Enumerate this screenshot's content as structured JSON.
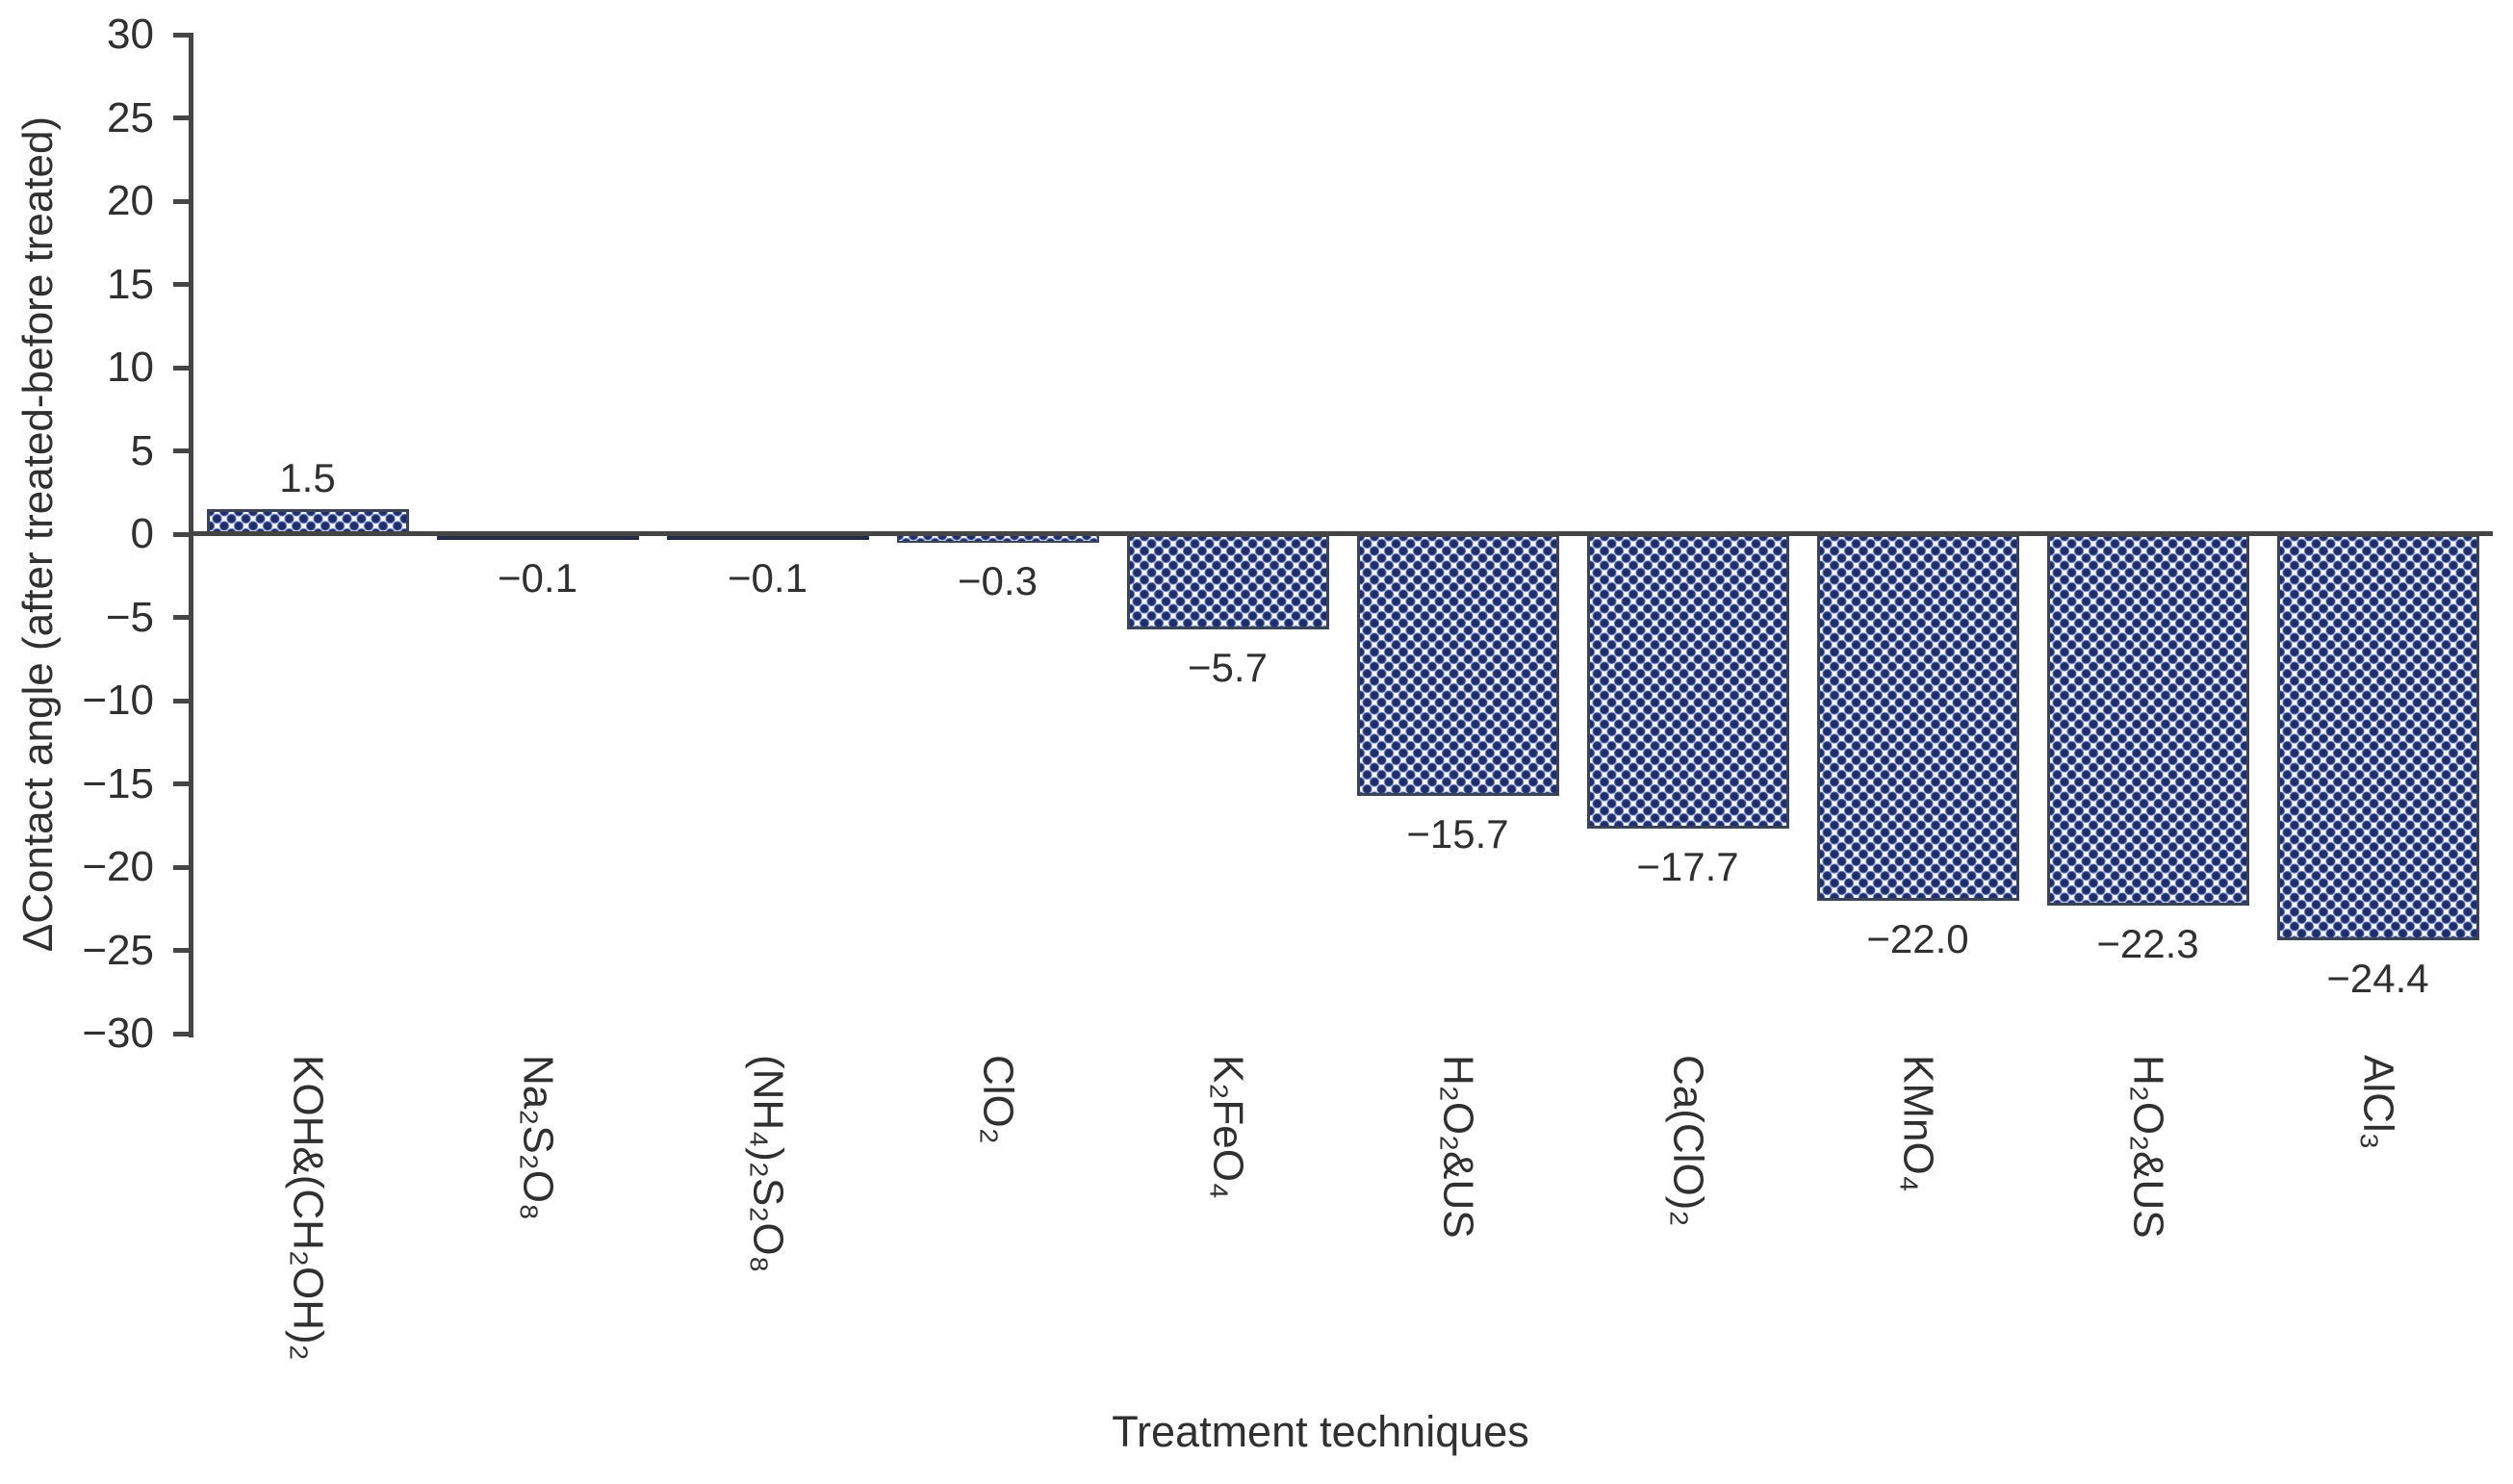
{
  "chart_data": {
    "type": "bar",
    "title": "",
    "xlabel": "Treatment techniques",
    "ylabel": "ΔContact angle (after treated-before treated)",
    "categories": [
      "KOH&(CH₂OH)₂",
      "Na₂S₂O₈",
      "(NH₄)₂S₂O₈",
      "ClO₂",
      "K₂FeO₄",
      "H₂O₂&US",
      "Ca(ClO)₂",
      "KMnO₄",
      "H₂O₂&US",
      "AlCl₃"
    ],
    "values": [
      1.5,
      -0.1,
      -0.1,
      -0.3,
      -5.7,
      -15.7,
      -17.7,
      -22.0,
      -22.3,
      -24.4
    ],
    "value_labels": [
      "1.5",
      "−0.1",
      "−0.1",
      "−0.3",
      "−5.7",
      "−15.7",
      "−17.7",
      "−22.0",
      "−22.3",
      "−24.4"
    ],
    "ylim": [
      -30,
      30
    ],
    "ytick_step": 5,
    "yticks": [
      30,
      25,
      20,
      15,
      10,
      5,
      0,
      -5,
      -10,
      -15,
      -20,
      -25,
      -30
    ],
    "ytick_labels": [
      "30",
      "25",
      "20",
      "15",
      "10",
      "5",
      "0",
      "−5",
      "−10",
      "−15",
      "−20",
      "−25",
      "−30"
    ],
    "grid": false,
    "legend": false,
    "bar_pattern": "navy dotted diamond weave on white",
    "colors": {
      "bar_dot": "#1e2d6b",
      "bar_gap": "#f3f6fd",
      "bar_border": "#3b4357",
      "axis": "#454545",
      "text": "#303030"
    }
  }
}
